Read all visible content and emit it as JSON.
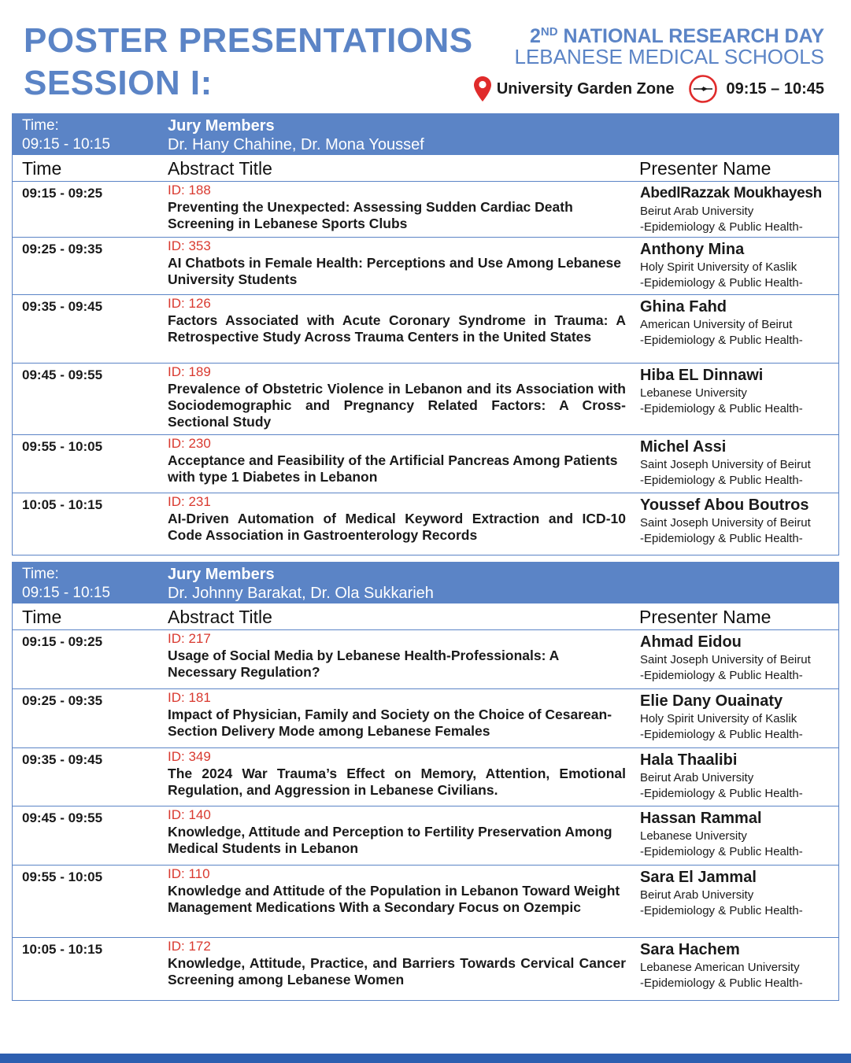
{
  "header": {
    "title_line1": "POSTER PRESENTATIONS",
    "title_line2": "SESSION I:",
    "event_ordinal": "2",
    "event_ordinal_suffix": "ND",
    "event_line1_rest": " NATIONAL RESEARCH DAY",
    "event_line2": "LEBANESE MEDICAL SCHOOLS",
    "location": "University Garden Zone",
    "time_range": "09:15 – 10:45",
    "accent_color": "#5b84c6",
    "id_color": "#d9392f",
    "location_icon": "map-pin-icon",
    "time_icon": "clock-icon"
  },
  "columns": {
    "time": "Time",
    "abstract": "Abstract Title",
    "presenter": "Presenter Name"
  },
  "sessions": [
    {
      "time_label": "Time:",
      "time_value": "09:15 - 10:15",
      "jury_label": "Jury Members",
      "jury_members": "Dr. Hany Chahine, Dr. Mona Youssef",
      "rows": [
        {
          "time": "09:15 - 09:25",
          "id": "ID: 188",
          "title": "Preventing the Unexpected: Assessing Sudden Cardiac Death Screening in Lebanese Sports Clubs",
          "presenter": "AbedlRazzak Moukhayesh",
          "university": "Beirut Arab University",
          "department": "-Epidemiology & Public Health-"
        },
        {
          "time": "09:25 - 09:35",
          "id": "ID: 353",
          "title": "AI Chatbots in Female Health: Perceptions and Use Among Lebanese University Students",
          "presenter": "Anthony Mina",
          "university": "Holy Spirit University of Kaslik",
          "department": "-Epidemiology & Public Health-"
        },
        {
          "time": "09:35 - 09:45",
          "id": "ID: 126",
          "title": "Factors Associated with Acute Coronary Syndrome in Trauma: A Retrospective Study Across Trauma Centers in the United States",
          "presenter": "Ghina Fahd",
          "university": "American University of Beirut",
          "department": "-Epidemiology & Public Health-"
        },
        {
          "time": "09:45 - 09:55",
          "id": "ID: 189",
          "title": "Prevalence of Obstetric Violence in Lebanon and its Association with Sociodemographic and Pregnancy Related Factors: A Cross-Sectional Study",
          "presenter": "Hiba EL Dinnawi",
          "university": "Lebanese University",
          "department": "-Epidemiology & Public Health-"
        },
        {
          "time": "09:55 - 10:05",
          "id": "ID: 230",
          "title": "Acceptance and Feasibility of the Artificial Pancreas Among Patients with type 1 Diabetes in Lebanon",
          "presenter": "Michel Assi",
          "university": "Saint Joseph University of Beirut",
          "department": "-Epidemiology & Public Health-"
        },
        {
          "time": "10:05 - 10:15",
          "id": "ID: 231",
          "title": "AI-Driven Automation of Medical Keyword Extraction and ICD-10 Code Association in Gastroenterology Records",
          "presenter": "Youssef Abou Boutros",
          "university": "Saint Joseph University of Beirut",
          "department": "-Epidemiology & Public Health-"
        }
      ]
    },
    {
      "time_label": "Time:",
      "time_value": "09:15 - 10:15",
      "jury_label": "Jury Members",
      "jury_members": "Dr. Johnny Barakat, Dr. Ola Sukkarieh",
      "rows": [
        {
          "time": "09:15 - 09:25",
          "id": "ID: 217",
          "title": "Usage of Social Media by Lebanese Health-Professionals: A Necessary Regulation?",
          "presenter": "Ahmad Eidou",
          "university": "Saint Joseph University of Beirut",
          "department": "-Epidemiology & Public Health-"
        },
        {
          "time": "09:25 - 09:35",
          "id": "ID: 181",
          "title": "Impact of Physician, Family and Society on the Choice of Cesarean-Section Delivery Mode among Lebanese Females",
          "presenter": "Elie Dany Ouainaty",
          "university": "Holy Spirit University of Kaslik",
          "department": "-Epidemiology & Public Health-"
        },
        {
          "time": "09:35 - 09:45",
          "id": "ID: 349",
          "title": "The 2024 War Trauma’s Effect on Memory, Attention, Emotional Regulation, and Aggression in Lebanese Civilians.",
          "presenter": "Hala Thaalibi",
          "university": "Beirut Arab University",
          "department": "-Epidemiology & Public Health-"
        },
        {
          "time": "09:45 - 09:55",
          "id": "ID: 140",
          "title": "Knowledge, Attitude and Perception to Fertility Preservation Among Medical Students in Lebanon",
          "presenter": "Hassan Rammal",
          "university": "Lebanese University",
          "department": "-Epidemiology & Public Health-"
        },
        {
          "time": "09:55 - 10:05",
          "id": "ID: 110",
          "title": "Knowledge and Attitude of the Population in Lebanon Toward Weight Management Medications With a Secondary Focus on Ozempic",
          "presenter": "Sara El Jammal",
          "university": "Beirut Arab University",
          "department": "-Epidemiology & Public Health-"
        },
        {
          "time": "10:05 - 10:15",
          "id": "ID: 172",
          "title": "Knowledge, Attitude, Practice, and Barriers Towards Cervical Cancer Screening among Lebanese Women",
          "presenter": "Sara Hachem",
          "university": "Lebanese American University",
          "department": "-Epidemiology & Public Health-"
        }
      ]
    }
  ]
}
